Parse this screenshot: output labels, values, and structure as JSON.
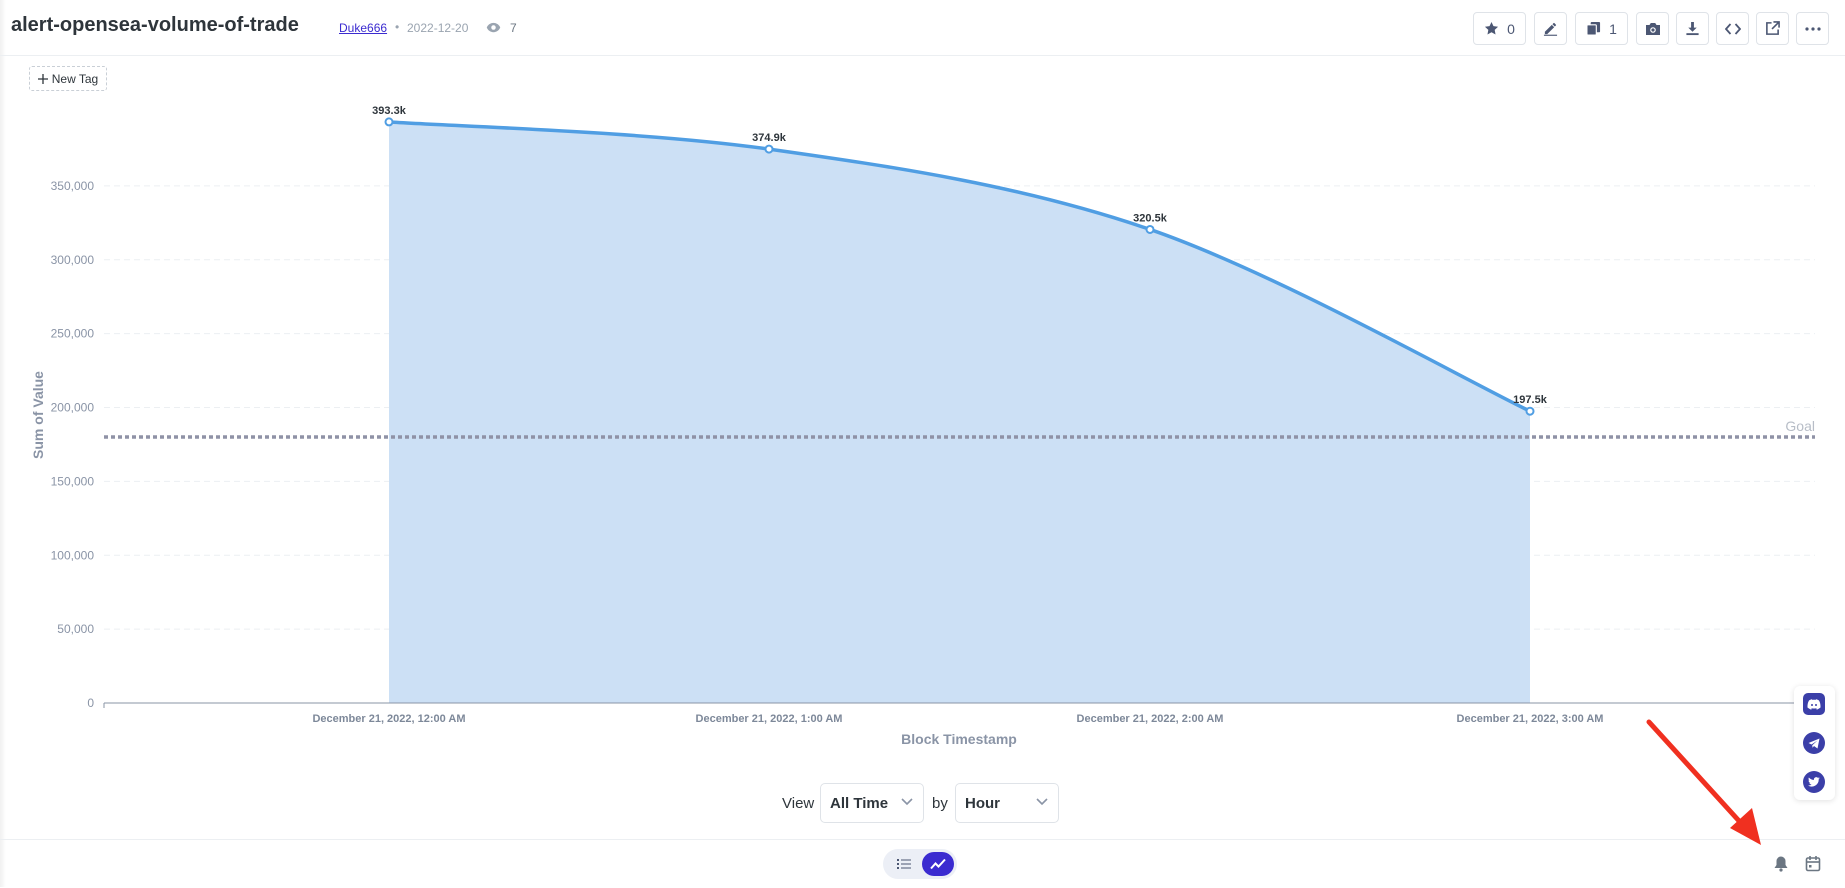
{
  "header": {
    "title": "alert-opensea-volume-of-trade",
    "author": "Duke666",
    "separator": "•",
    "date": "2022-12-20",
    "views": "7",
    "star_count": "0",
    "duplicate_count": "1"
  },
  "new_tag": {
    "label": "New Tag"
  },
  "chart_data": {
    "type": "area",
    "x": [
      "December 21, 2022, 12:00 AM",
      "December 21, 2022, 1:00 AM",
      "December 21, 2022, 2:00 AM",
      "December 21, 2022, 3:00 AM"
    ],
    "series": [
      {
        "values": [
          393300,
          374900,
          320500,
          197500
        ],
        "labels": [
          "393.3k",
          "374.9k",
          "320.5k",
          "197.5k"
        ],
        "color": "#509ee3"
      }
    ],
    "xlabel": "Block Timestamp",
    "ylabel": "Sum of Value",
    "ylim": [
      0,
      400000
    ],
    "yticks": [
      0,
      50000,
      100000,
      150000,
      200000,
      250000,
      300000,
      350000
    ],
    "ytick_labels": [
      "0",
      "50,000",
      "100,000",
      "150,000",
      "200,000",
      "250,000",
      "300,000",
      "350,000"
    ],
    "goal": {
      "value": 180000,
      "label": "Goal",
      "color": "#8f92a6"
    },
    "grid": true
  },
  "controls": {
    "view_label": "View",
    "view_value": "All Time",
    "by_label": "by",
    "by_value": "Hour"
  },
  "social": [
    "discord-icon",
    "telegram-icon",
    "twitter-icon"
  ],
  "colors": {
    "accent": "#3b2bd0",
    "line": "#509ee3",
    "area": "#cce0f5",
    "annotation_arrow": "#f03020"
  }
}
